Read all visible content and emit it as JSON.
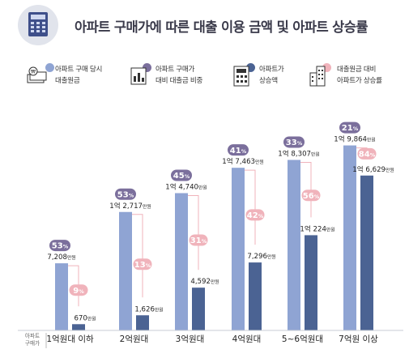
{
  "title": "아파트 구매가에 따른 대출 이용 금액 및 아파트 상승률",
  "legend": [
    {
      "line1": "아파트 구매 당시",
      "line2": "대출원금",
      "color": "#8fa4d3",
      "icon": "money-bills-icon"
    },
    {
      "line1": "아파트 구매가",
      "line2": "대비 대출금 비중",
      "color": "#7b6f9c",
      "icon": "chart-document-icon"
    },
    {
      "line1": "아파트가",
      "line2": "상승액",
      "color": "#4b6393",
      "icon": "calculator-icon"
    },
    {
      "line1": "대출원금 대비",
      "line2": "아파트가 상승률",
      "color": "#f0b3bb",
      "icon": "apartment-building-icon"
    }
  ],
  "chart_data": {
    "type": "bar",
    "categories": [
      "1억원대 이하",
      "2억원대",
      "3억원대",
      "4억원대",
      "5~6억원대",
      "7억원 이상"
    ],
    "category_axis_label": [
      "아파트",
      "구매가"
    ],
    "series": [
      {
        "name": "아파트 구매 당시 대출원금",
        "color": "#8fa4d3",
        "values": [
          7208,
          12717,
          14740,
          17463,
          18307,
          19864
        ],
        "labels": [
          {
            "prefix": "",
            "num": "7,208",
            "unit": "만원"
          },
          {
            "prefix": "1억 ",
            "num": "2,717",
            "unit": "만원"
          },
          {
            "prefix": "1억 ",
            "num": "4,740",
            "unit": "만원"
          },
          {
            "prefix": "1억 ",
            "num": "7,463",
            "unit": "만원"
          },
          {
            "prefix": "1억 ",
            "num": "8,307",
            "unit": "만원"
          },
          {
            "prefix": "1억 ",
            "num": "9,864",
            "unit": "만원"
          }
        ],
        "badge": {
          "color": "#7b6f9c",
          "values": [
            "53",
            "53",
            "45",
            "41",
            "33",
            "21"
          ],
          "symbol": "%"
        }
      },
      {
        "name": "아파트가 상승액",
        "color": "#4b6393",
        "values": [
          670,
          1626,
          4592,
          7296,
          10224,
          16629
        ],
        "labels": [
          {
            "prefix": "",
            "num": "670",
            "unit": "만원"
          },
          {
            "prefix": "",
            "num": "1,626",
            "unit": "만원"
          },
          {
            "prefix": "",
            "num": "4,592",
            "unit": "만원"
          },
          {
            "prefix": "",
            "num": "7,296",
            "unit": "만원"
          },
          {
            "prefix": "1억 ",
            "num": "224",
            "unit": "만원"
          },
          {
            "prefix": "1억 ",
            "num": "6,629",
            "unit": "만원"
          }
        ],
        "badge": {
          "color": "#f0b3bb",
          "values": [
            "9",
            "13",
            "31",
            "42",
            "56",
            "84"
          ],
          "symbol": "%"
        }
      }
    ]
  }
}
